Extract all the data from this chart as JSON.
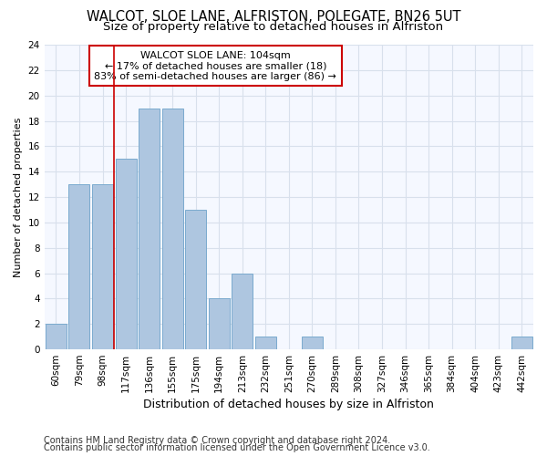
{
  "title": "WALCOT, SLOE LANE, ALFRISTON, POLEGATE, BN26 5UT",
  "subtitle": "Size of property relative to detached houses in Alfriston",
  "xlabel": "Distribution of detached houses by size in Alfriston",
  "ylabel": "Number of detached properties",
  "categories": [
    "60sqm",
    "79sqm",
    "98sqm",
    "117sqm",
    "136sqm",
    "155sqm",
    "175sqm",
    "194sqm",
    "213sqm",
    "232sqm",
    "251sqm",
    "270sqm",
    "289sqm",
    "308sqm",
    "327sqm",
    "346sqm",
    "365sqm",
    "384sqm",
    "404sqm",
    "423sqm",
    "442sqm"
  ],
  "values": [
    2,
    13,
    13,
    15,
    19,
    19,
    11,
    4,
    6,
    1,
    0,
    1,
    0,
    0,
    0,
    0,
    0,
    0,
    0,
    0,
    1
  ],
  "bar_color": "#aec6e0",
  "bar_edge_color": "#7aaace",
  "vline_x": 2.5,
  "vline_color": "#cc0000",
  "annotation_text": "WALCOT SLOE LANE: 104sqm\n← 17% of detached houses are smaller (18)\n83% of semi-detached houses are larger (86) →",
  "annotation_box_color": "#ffffff",
  "annotation_box_edge_color": "#cc0000",
  "ylim": [
    0,
    24
  ],
  "yticks": [
    0,
    2,
    4,
    6,
    8,
    10,
    12,
    14,
    16,
    18,
    20,
    22,
    24
  ],
  "background_color": "#ffffff",
  "plot_background": "#f5f8ff",
  "grid_color": "#d8e0ec",
  "footer_line1": "Contains HM Land Registry data © Crown copyright and database right 2024.",
  "footer_line2": "Contains public sector information licensed under the Open Government Licence v3.0.",
  "title_fontsize": 10.5,
  "subtitle_fontsize": 9.5,
  "xlabel_fontsize": 9,
  "ylabel_fontsize": 8,
  "tick_fontsize": 7.5,
  "annotation_fontsize": 8,
  "footer_fontsize": 7
}
